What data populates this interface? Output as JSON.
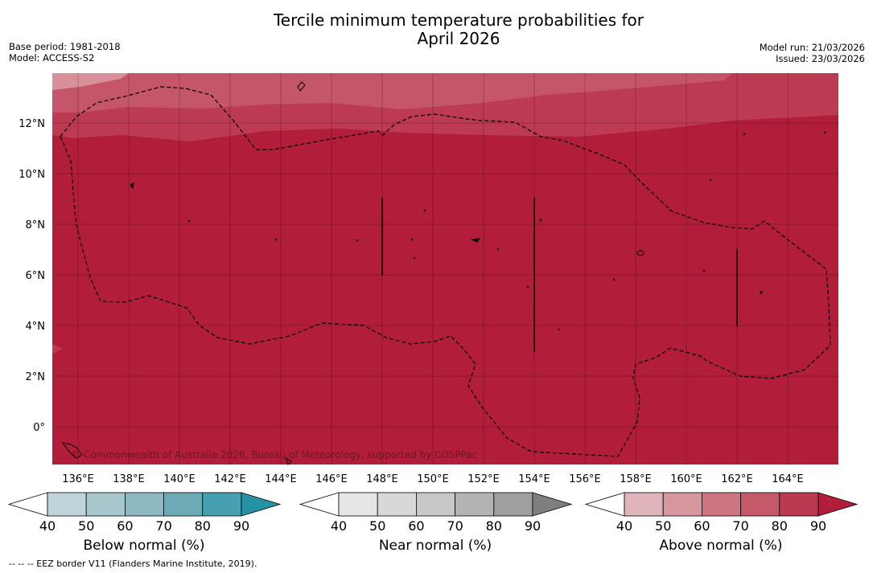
{
  "title": {
    "line1": "Tercile minimum temperature probabilities for",
    "line2": "April 2026"
  },
  "meta_left": {
    "base_period": "Base period: 1981-2018",
    "model": "Model: ACCESS-S2"
  },
  "meta_right": {
    "model_run": "Model run: 21/03/2026",
    "issued": "Issued: 23/03/2026"
  },
  "map": {
    "lat_labels": [
      "12°N",
      "10°N",
      "8°N",
      "6°N",
      "4°N",
      "2°N",
      "0°"
    ],
    "lon_labels": [
      "136°E",
      "138°E",
      "140°E",
      "142°E",
      "144°E",
      "146°E",
      "148°E",
      "150°E",
      "152°E",
      "154°E",
      "156°E",
      "158°E",
      "160°E",
      "162°E",
      "164°E"
    ],
    "copyright": "© Commonwealth of Australia 2026, Bureau of Meteorology, supported by COSPPac",
    "base_color": "#b21e3a",
    "band_colors": [
      "#d9909a",
      "#c5566a",
      "#bd3b52"
    ]
  },
  "colorbars": [
    {
      "label": "Below normal (%)",
      "ticks": [
        "40",
        "50",
        "60",
        "70",
        "80",
        "90"
      ],
      "colors": [
        "#bfd4da",
        "#a7c7cd",
        "#8db8c1",
        "#6eaab6",
        "#46a0b0",
        "#2592a6"
      ]
    },
    {
      "label": "Near normal (%)",
      "ticks": [
        "40",
        "50",
        "60",
        "70",
        "80",
        "90"
      ],
      "colors": [
        "#e6e6e6",
        "#d8d8d8",
        "#c8c8c8",
        "#b3b3b3",
        "#9f9f9f",
        "#7f7f7f"
      ]
    },
    {
      "label": "Above normal (%)",
      "ticks": [
        "40",
        "50",
        "60",
        "70",
        "80",
        "90"
      ],
      "colors": [
        "#e0b4bb",
        "#d7979f",
        "#cd7580",
        "#c5596a",
        "#bb3a52",
        "#b21e3a"
      ]
    }
  ],
  "footnote": "--  --  -- EEZ border V11 (Flanders Marine Institute, 2019)."
}
